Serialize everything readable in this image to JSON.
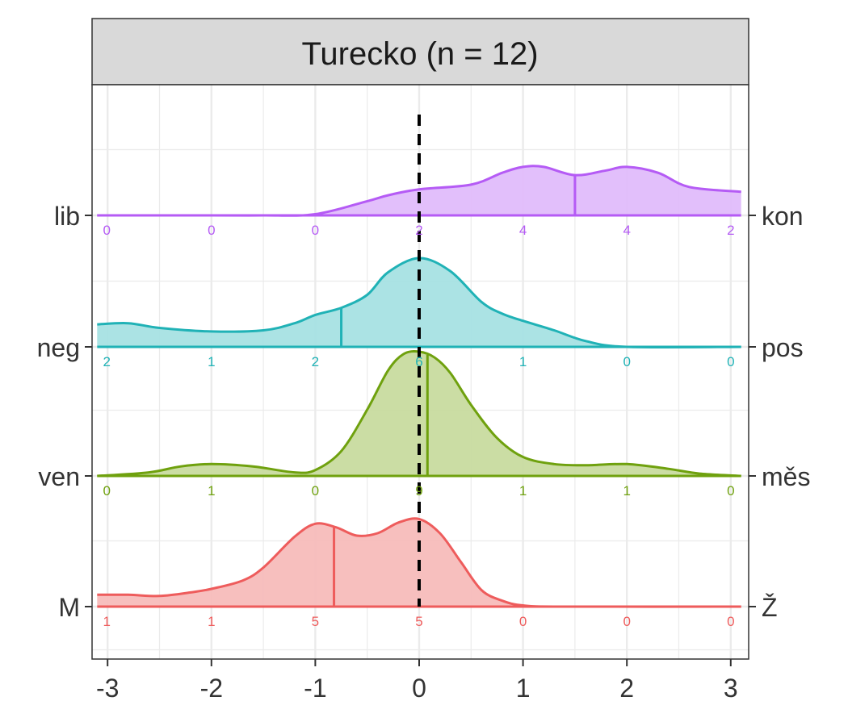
{
  "chart_data": {
    "type": "ridgeline",
    "title": "Turecko (n = 12)",
    "xlim": [
      -3.1,
      3.1
    ],
    "x_ticks": [
      "-3",
      "-2",
      "-1",
      "0",
      "1",
      "2",
      "3"
    ],
    "x_tick_values": [
      -3,
      -2,
      -1,
      0,
      1,
      2,
      3
    ],
    "count_positions": [
      -3,
      -2,
      -1,
      0,
      1,
      2,
      3
    ],
    "reference_line_x": 0,
    "grid": true,
    "rows": [
      {
        "left_label": "lib",
        "right_label": "kon",
        "color": "#B55BF5",
        "fill": "#E0BCFB",
        "median": 1.5,
        "counts": [
          "0",
          "0",
          "0",
          "2",
          "4",
          "4",
          "2"
        ],
        "density_x": [
          -3.1,
          -2.0,
          -1.5,
          -1.0,
          -0.5,
          -0.3,
          0.0,
          0.5,
          0.8,
          1.0,
          1.2,
          1.5,
          1.8,
          2.0,
          2.3,
          2.6,
          3.1
        ],
        "density_y": [
          0,
          0,
          0,
          0.01,
          0.12,
          0.17,
          0.22,
          0.26,
          0.36,
          0.41,
          0.41,
          0.34,
          0.38,
          0.41,
          0.36,
          0.24,
          0.2
        ]
      },
      {
        "left_label": "neg",
        "right_label": "pos",
        "color": "#20B2B6",
        "fill": "#A6E2E3",
        "median": -0.75,
        "counts": [
          "2",
          "1",
          "2",
          "6",
          "1",
          "0",
          "0"
        ],
        "density_x": [
          -3.1,
          -2.8,
          -2.5,
          -2.0,
          -1.5,
          -1.2,
          -1.0,
          -0.75,
          -0.5,
          -0.3,
          0.0,
          0.3,
          0.6,
          0.8,
          1.0,
          1.3,
          1.6,
          2.0,
          3.1
        ],
        "density_y": [
          0.19,
          0.2,
          0.16,
          0.13,
          0.14,
          0.2,
          0.27,
          0.33,
          0.44,
          0.63,
          0.75,
          0.64,
          0.38,
          0.28,
          0.22,
          0.14,
          0.05,
          0,
          0
        ]
      },
      {
        "left_label": "ven",
        "right_label": "měs",
        "color": "#6FA10E",
        "fill": "#C8DB9F",
        "median": 0.08,
        "counts": [
          "0",
          "1",
          "0",
          "9",
          "1",
          "1",
          "0"
        ],
        "density_x": [
          -3.1,
          -2.6,
          -2.3,
          -2.0,
          -1.6,
          -1.2,
          -1.0,
          -0.75,
          -0.5,
          -0.3,
          -0.15,
          0.0,
          0.15,
          0.3,
          0.5,
          0.75,
          1.0,
          1.3,
          1.6,
          2.0,
          2.4,
          2.7,
          3.1
        ],
        "density_y": [
          0,
          0.03,
          0.08,
          0.1,
          0.08,
          0.03,
          0.05,
          0.21,
          0.56,
          0.89,
          1.03,
          1.05,
          1.0,
          0.87,
          0.6,
          0.32,
          0.16,
          0.1,
          0.09,
          0.1,
          0.06,
          0.02,
          0
        ]
      },
      {
        "left_label": "M",
        "right_label": "Ž",
        "color": "#EE5C5C",
        "fill": "#F7BCBA",
        "median": -0.82,
        "counts": [
          "1",
          "1",
          "5",
          "5",
          "0",
          "0",
          "0"
        ],
        "density_x": [
          -3.1,
          -2.8,
          -2.5,
          -2.2,
          -2.0,
          -1.7,
          -1.5,
          -1.2,
          -1.0,
          -0.8,
          -0.6,
          -0.4,
          -0.2,
          0.0,
          0.2,
          0.4,
          0.6,
          0.8,
          1.0,
          1.4,
          3.1
        ],
        "density_y": [
          0.1,
          0.1,
          0.09,
          0.12,
          0.15,
          0.22,
          0.33,
          0.59,
          0.7,
          0.67,
          0.6,
          0.62,
          0.71,
          0.74,
          0.62,
          0.38,
          0.14,
          0.05,
          0.01,
          0,
          0
        ]
      }
    ]
  }
}
